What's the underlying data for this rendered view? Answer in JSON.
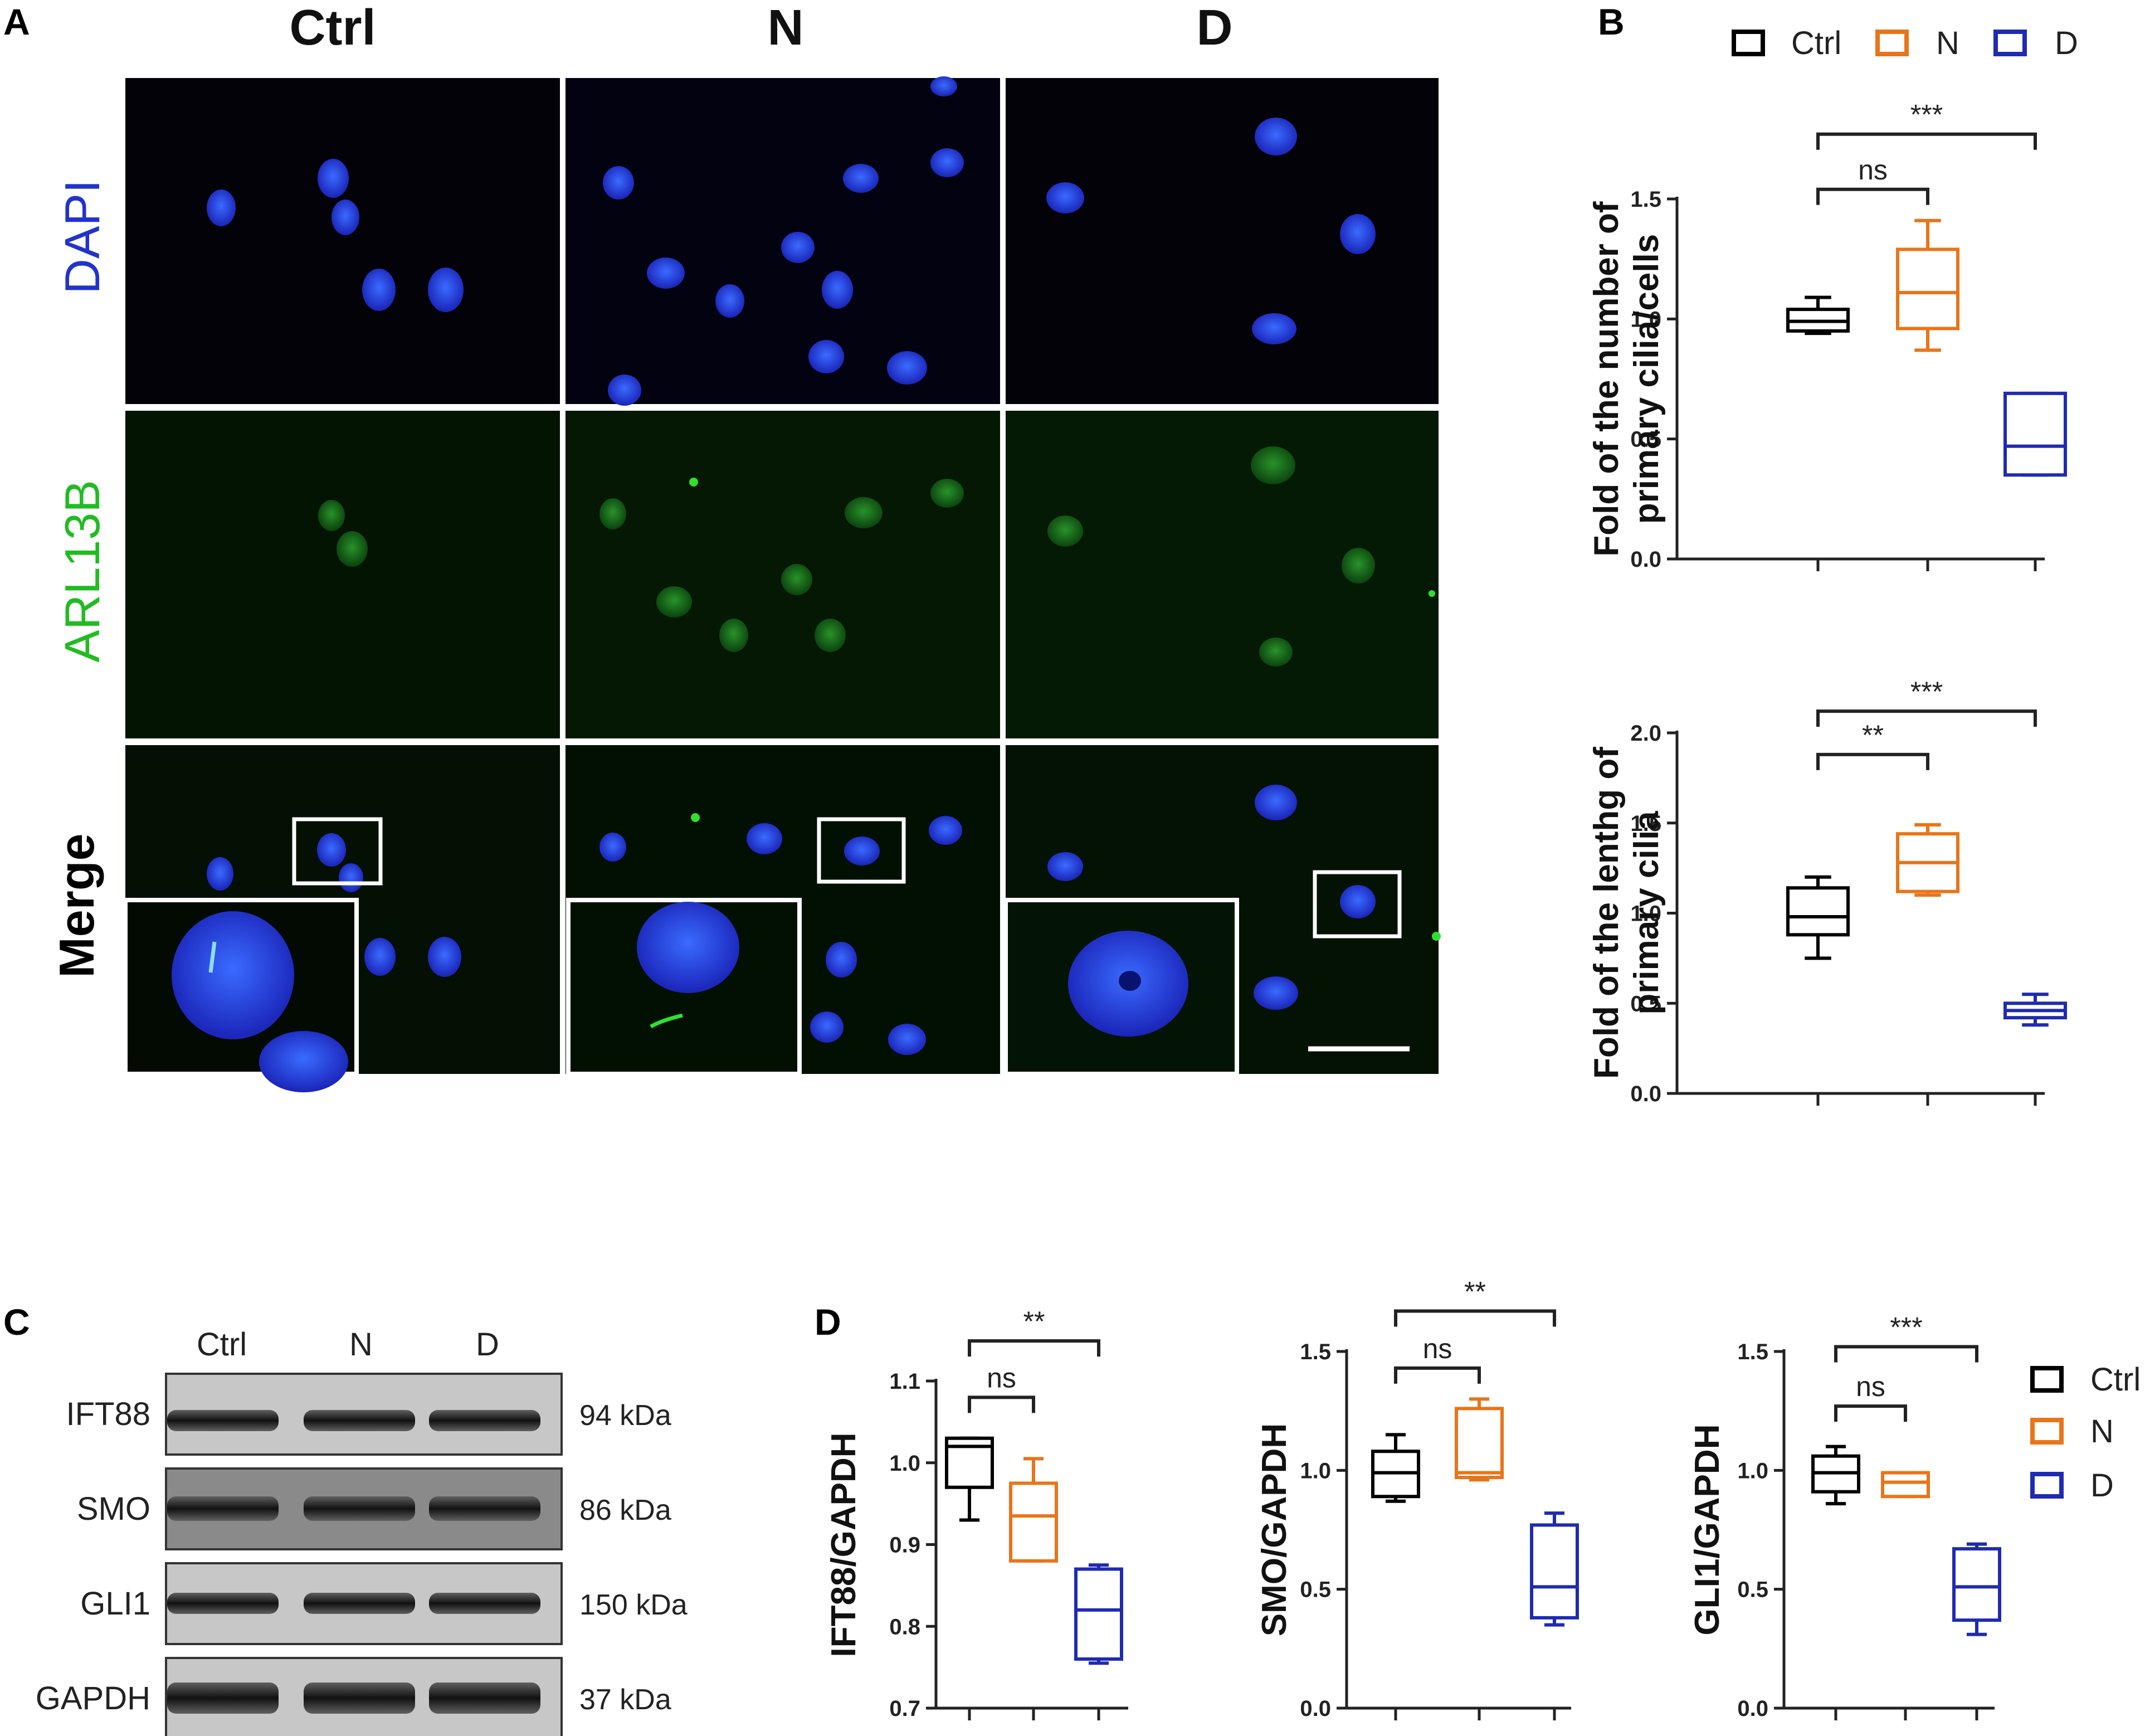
{
  "panel_labels": {
    "a": "A",
    "b": "B",
    "c": "C",
    "d": "D"
  },
  "micrograph": {
    "columns": [
      "Ctrl",
      "N",
      "D"
    ],
    "rows": [
      "DAPI",
      "ARL13B",
      "Merge"
    ],
    "colors": {
      "DAPI": "#2233cc",
      "ARL13B": "#22bb22",
      "Merge": "#000000"
    }
  },
  "legend": {
    "ctrl": "Ctrl",
    "n": "N",
    "d": "D"
  },
  "colors": {
    "ctrl": "#000000",
    "n": "#e8751a",
    "d": "#1f2bb0"
  },
  "western_blot": {
    "lanes": [
      "Ctrl",
      "N",
      "D"
    ],
    "bands": [
      {
        "name": "IFT88",
        "size": "94 kDa"
      },
      {
        "name": "SMO",
        "size": "86 kDa"
      },
      {
        "name": "GLI1",
        "size": "150 kDa"
      },
      {
        "name": "GAPDH",
        "size": "37 kDa"
      }
    ]
  },
  "chart_data": [
    {
      "id": "B-number",
      "type": "box",
      "ylabel": [
        "Fold of  the number of",
        "primary cilia/cells"
      ],
      "yticks": [
        "0.0",
        "0.5",
        "1.0",
        "1.5"
      ],
      "ylim": [
        0,
        1.5
      ],
      "categories": [
        "Ctrl",
        "N",
        "D"
      ],
      "boxes": [
        {
          "name": "Ctrl",
          "min": 0.94,
          "q1": 0.95,
          "median": 0.99,
          "q3": 1.04,
          "max": 1.09
        },
        {
          "name": "N",
          "min": 0.87,
          "q1": 0.96,
          "median": 1.11,
          "q3": 1.29,
          "max": 1.41
        },
        {
          "name": "D",
          "min": 0.35,
          "q1": 0.35,
          "median": 0.47,
          "q3": 0.69,
          "max": 0.69
        }
      ],
      "brackets": [
        {
          "from": 0,
          "to": 1,
          "label": "ns",
          "y": 1.54
        },
        {
          "from": 0,
          "to": 2,
          "label": "***",
          "y": 1.77
        }
      ]
    },
    {
      "id": "B-length",
      "type": "box",
      "ylabel": [
        "Fold of  the lenthg of",
        "primary cilia"
      ],
      "yticks": [
        "0.0",
        "0.5",
        "1.0",
        "1.5",
        "2.0"
      ],
      "ylim": [
        0,
        2.0
      ],
      "categories": [
        "Ctrl",
        "N",
        "D"
      ],
      "boxes": [
        {
          "name": "Ctrl",
          "min": 0.75,
          "q1": 0.88,
          "median": 0.98,
          "q3": 1.14,
          "max": 1.2
        },
        {
          "name": "N",
          "min": 1.1,
          "q1": 1.12,
          "median": 1.28,
          "q3": 1.44,
          "max": 1.49
        },
        {
          "name": "D",
          "min": 0.38,
          "q1": 0.42,
          "median": 0.46,
          "q3": 0.5,
          "max": 0.55
        }
      ],
      "brackets": [
        {
          "from": 0,
          "to": 1,
          "label": "**",
          "y": 1.88
        },
        {
          "from": 0,
          "to": 2,
          "label": "***",
          "y": 2.12
        }
      ]
    },
    {
      "id": "D-IFT88",
      "type": "box",
      "ylabel": [
        "IFT88/GAPDH"
      ],
      "yticks": [
        "0.7",
        "0.8",
        "0.9",
        "1.0",
        "1.1"
      ],
      "ylim": [
        0.7,
        1.1
      ],
      "categories": [
        "Ctrl",
        "N",
        "D"
      ],
      "boxes": [
        {
          "name": "Ctrl",
          "min": 0.93,
          "q1": 0.97,
          "median": 1.02,
          "q3": 1.03,
          "max": 1.03
        },
        {
          "name": "N",
          "min": 0.88,
          "q1": 0.88,
          "median": 0.935,
          "q3": 0.975,
          "max": 1.005
        },
        {
          "name": "D",
          "min": 0.755,
          "q1": 0.76,
          "median": 0.82,
          "q3": 0.87,
          "max": 0.875
        }
      ],
      "brackets": [
        {
          "from": 0,
          "to": 1,
          "label": "ns",
          "y": 1.08
        },
        {
          "from": 0,
          "to": 2,
          "label": "**",
          "y": 1.149
        }
      ]
    },
    {
      "id": "D-SMO",
      "type": "box",
      "ylabel": [
        "SMO/GAPDH"
      ],
      "yticks": [
        "0.0",
        "0.5",
        "1.0",
        "1.5"
      ],
      "ylim": [
        0,
        1.5
      ],
      "categories": [
        "Ctrl",
        "N",
        "D"
      ],
      "boxes": [
        {
          "name": "Ctrl",
          "min": 0.87,
          "q1": 0.89,
          "median": 0.99,
          "q3": 1.08,
          "max": 1.15
        },
        {
          "name": "N",
          "min": 0.96,
          "q1": 0.97,
          "median": 0.99,
          "q3": 1.26,
          "max": 1.3
        },
        {
          "name": "D",
          "min": 0.35,
          "q1": 0.38,
          "median": 0.51,
          "q3": 0.77,
          "max": 0.82
        }
      ],
      "brackets": [
        {
          "from": 0,
          "to": 1,
          "label": "ns",
          "y": 1.43
        },
        {
          "from": 0,
          "to": 2,
          "label": "**",
          "y": 1.67
        }
      ]
    },
    {
      "id": "D-GLI1",
      "type": "box",
      "ylabel": [
        "GLI1/GAPDH"
      ],
      "yticks": [
        "0.0",
        "0.5",
        "1.0",
        "1.5"
      ],
      "ylim": [
        0,
        1.5
      ],
      "categories": [
        "Ctrl",
        "N",
        "D"
      ],
      "boxes": [
        {
          "name": "Ctrl",
          "min": 0.86,
          "q1": 0.91,
          "median": 0.99,
          "q3": 1.06,
          "max": 1.1
        },
        {
          "name": "N",
          "min": 0.89,
          "q1": 0.89,
          "median": 0.95,
          "q3": 0.99,
          "max": 0.99
        },
        {
          "name": "D",
          "min": 0.31,
          "q1": 0.37,
          "median": 0.51,
          "q3": 0.67,
          "max": 0.69
        }
      ],
      "brackets": [
        {
          "from": 0,
          "to": 1,
          "label": "ns",
          "y": 1.27
        },
        {
          "from": 0,
          "to": 2,
          "label": "***",
          "y": 1.52
        }
      ]
    }
  ]
}
